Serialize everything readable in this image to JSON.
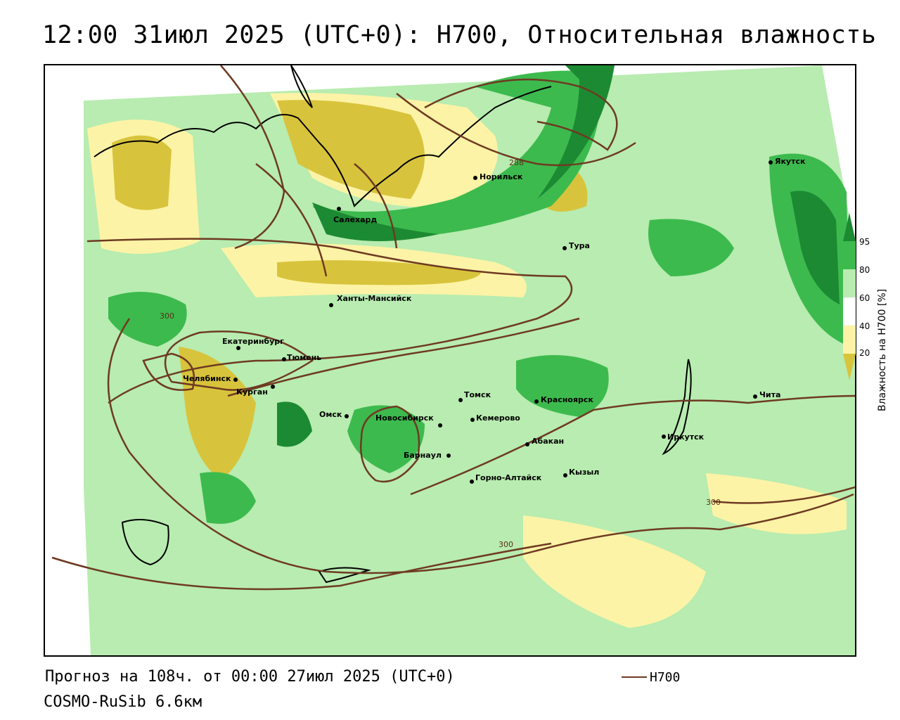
{
  "header": {
    "title": "12:00 31июл 2025 (UTC+0): H700, Относительная влажность"
  },
  "footer": {
    "forecast": "Прогноз на 108ч. от 00:00 27июл 2025 (UTC+0)",
    "model": "COSMO-RuSib 6.6км",
    "legend_label": "H700"
  },
  "colorbar": {
    "title": "Влажность на H700 [%]",
    "ticks": [
      "95",
      "80",
      "60",
      "40",
      "20"
    ],
    "colors": {
      "gt95": "#1c8a32",
      "80_95": "#3dba4e",
      "60_80": "#b8ecb0",
      "40_60": "#ffffff",
      "20_40": "#fdf3a6",
      "lt20": "#d8c43c"
    }
  },
  "map": {
    "isoline_color": "#6e3a22",
    "isoline_labels": [
      "288",
      "300",
      "300",
      "300"
    ],
    "cities": [
      "Якутск",
      "Норильск",
      "Салехард",
      "Тура",
      "Ханты-Мансийск",
      "Екатеринбург",
      "Тюмень",
      "Челябинск",
      "Курган",
      "Томск",
      "Красноярск",
      "Омск",
      "Новосибирск",
      "Кемерово",
      "Иркутск",
      "Чита",
      "Абакан",
      "Барнаул",
      "Горно-Алтайск",
      "Кызыл"
    ]
  }
}
